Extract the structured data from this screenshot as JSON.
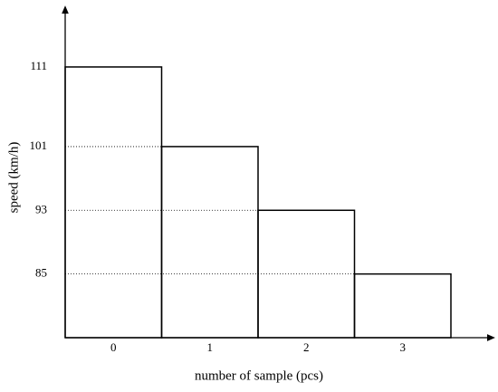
{
  "chart_data": {
    "type": "bar",
    "x_label": "number of sample (pcs)",
    "y_label": "speed (km/h)",
    "categories": [
      "0",
      "1",
      "2",
      "3"
    ],
    "values": [
      111,
      101,
      93,
      85
    ],
    "color": "#000000",
    "ylim": [
      77,
      118.5
    ],
    "yticks": [
      85,
      93,
      101,
      111
    ],
    "grid": true
  }
}
